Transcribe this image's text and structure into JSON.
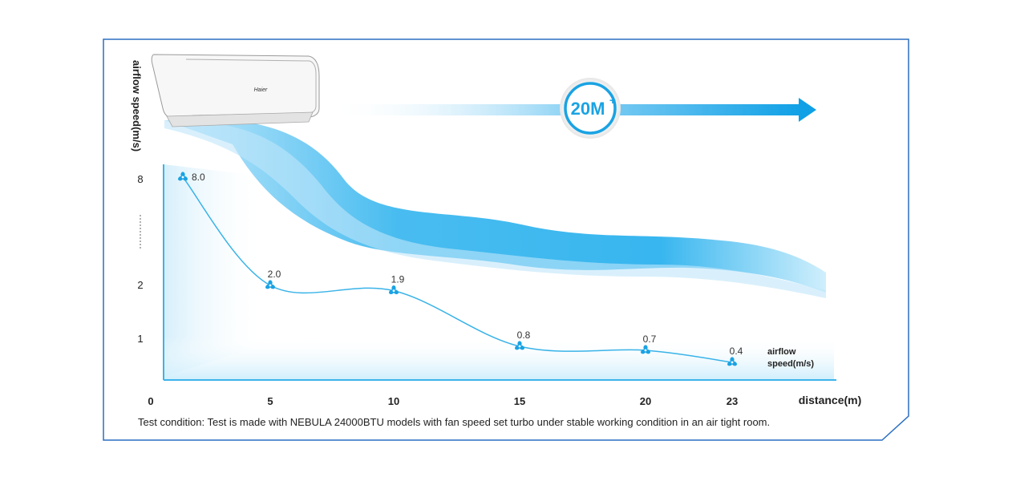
{
  "brand_logo_text": "Haier",
  "badge": {
    "text": "20M",
    "plus": "+"
  },
  "chart_data": {
    "type": "line",
    "title": "",
    "x": [
      0,
      5,
      10,
      15,
      20,
      23
    ],
    "series": [
      {
        "name": "airflow speed(m/s)",
        "x": [
          0,
          5,
          10,
          15,
          20,
          23
        ],
        "values": [
          8.0,
          2.0,
          1.9,
          0.8,
          0.7,
          0.4
        ]
      }
    ],
    "data_labels": [
      "8.0",
      "2.0",
      "1.9",
      "0.8",
      "0.7",
      "0.4"
    ],
    "xlabel": "distance(m)",
    "ylabel": "airflow speed(m/s)",
    "x_tick_labels": [
      "0",
      "5",
      "10",
      "15",
      "20",
      "23"
    ],
    "y_tick_labels": [
      "8",
      "2",
      "1"
    ],
    "y_axis_break": true,
    "series_label": [
      "airflow",
      "speed(m/s)"
    ],
    "grid": false,
    "colors": {
      "line": "#39b3e8",
      "accent": "#1aa3e3",
      "frame": "#2b6fc2"
    }
  },
  "footnote": "Test condition: Test is made with NEBULA 24000BTU models with fan speed  set turbo under stable working condition in an air tight room."
}
